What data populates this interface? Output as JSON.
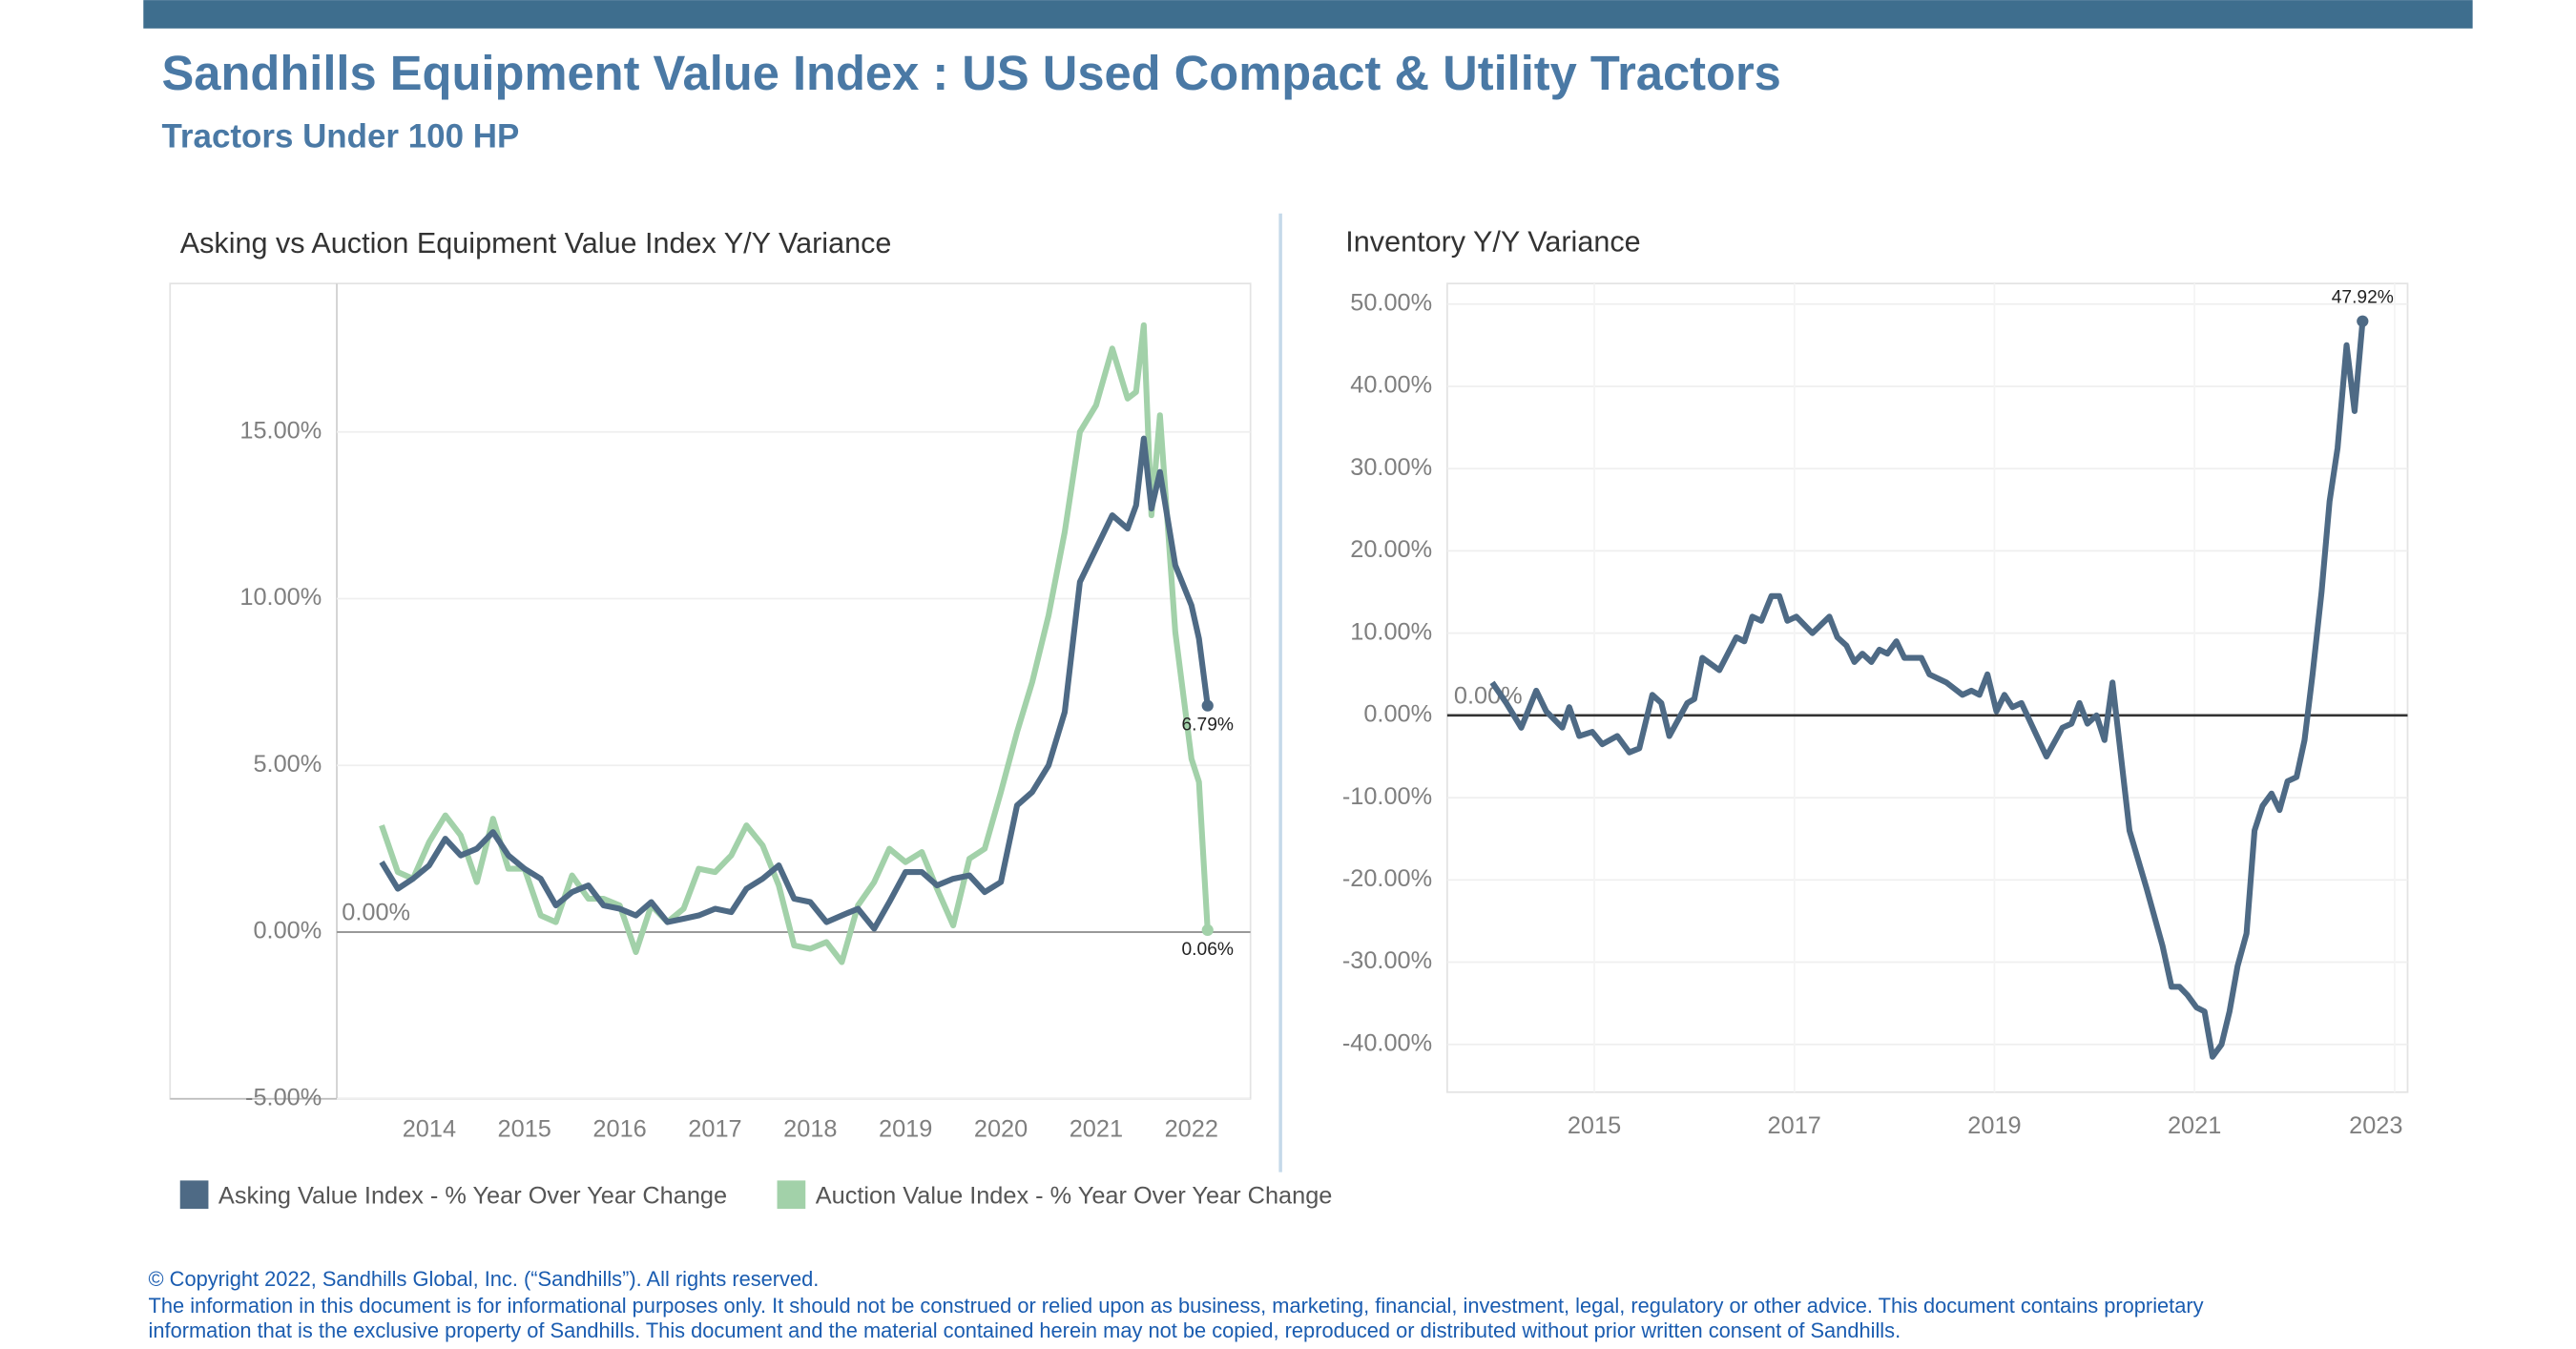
{
  "header": {
    "title": "Sandhills Equipment Value Index : US Used Compact & Utility Tractors",
    "subtitle": "Tractors Under 100 HP"
  },
  "footer": [
    "© Copyright 2022, Sandhills Global, Inc. (“Sandhills”). All rights reserved.",
    "The information in this document is for informational purposes only.  It should not be construed or relied upon as business, marketing, financial, investment, legal, regulatory or other advice. This document contains proprietary",
    "information that is the exclusive property of Sandhills. This document and the material contained herein may not be copied, reproduced or distributed without prior written consent of Sandhills."
  ],
  "chart_data": [
    {
      "type": "line",
      "title": "Asking vs Auction Equipment Value Index Y/Y Variance",
      "x": [
        2013.5,
        2013.67,
        2013.83,
        2014.0,
        2014.17,
        2014.33,
        2014.5,
        2014.67,
        2014.83,
        2015.0,
        2015.17,
        2015.33,
        2015.5,
        2015.67,
        2015.83,
        2016.0,
        2016.17,
        2016.33,
        2016.5,
        2016.67,
        2016.83,
        2017.0,
        2017.17,
        2017.33,
        2017.5,
        2017.67,
        2017.83,
        2018.0,
        2018.17,
        2018.33,
        2018.5,
        2018.67,
        2018.83,
        2019.0,
        2019.17,
        2019.33,
        2019.5,
        2019.67,
        2019.83,
        2020.0,
        2020.17,
        2020.33,
        2020.5,
        2020.67,
        2020.83,
        2021.0,
        2021.17,
        2021.33,
        2021.42,
        2021.5,
        2021.58,
        2021.67,
        2021.83,
        2022.0,
        2022.08,
        2022.17
      ],
      "series": [
        {
          "name": "Asking Value Index - % Year Over Year Change",
          "color": "#4e6a85",
          "values": [
            2.1,
            1.3,
            1.6,
            2.0,
            2.8,
            2.3,
            2.5,
            3.0,
            2.3,
            1.9,
            1.6,
            0.8,
            1.2,
            1.4,
            0.8,
            0.7,
            0.5,
            0.9,
            0.3,
            0.4,
            0.5,
            0.7,
            0.6,
            1.3,
            1.6,
            2.0,
            1.0,
            0.9,
            0.3,
            0.5,
            0.7,
            0.1,
            0.9,
            1.8,
            1.8,
            1.4,
            1.6,
            1.7,
            1.2,
            1.5,
            3.8,
            4.2,
            5.0,
            6.6,
            10.5,
            11.5,
            12.5,
            12.1,
            12.8,
            14.8,
            12.7,
            13.8,
            11.0,
            9.8,
            8.8,
            6.79
          ],
          "value_labels": [
            null,
            null,
            null,
            null,
            null,
            null,
            null,
            null,
            null,
            null,
            null,
            null,
            null,
            null,
            null,
            null,
            null,
            null,
            null,
            null,
            null,
            null,
            null,
            null,
            null,
            null,
            null,
            null,
            null,
            null,
            null,
            null,
            null,
            null,
            null,
            null,
            null,
            null,
            null,
            null,
            null,
            null,
            null,
            null,
            null,
            null,
            null,
            null,
            null,
            null,
            null,
            null,
            null,
            null,
            null,
            "6.79%"
          ]
        },
        {
          "name": "Auction Value Index - % Year Over Year Change",
          "color": "#a2d1a9",
          "values": [
            3.2,
            1.8,
            1.6,
            2.7,
            3.5,
            2.9,
            1.5,
            3.4,
            1.9,
            1.9,
            0.5,
            0.3,
            1.7,
            1.0,
            1.0,
            0.8,
            -0.6,
            0.8,
            0.3,
            0.7,
            1.9,
            1.8,
            2.3,
            3.2,
            2.6,
            1.4,
            -0.4,
            -0.5,
            -0.3,
            -0.9,
            0.8,
            1.5,
            2.5,
            2.1,
            2.4,
            1.3,
            0.2,
            2.2,
            2.5,
            4.2,
            6.0,
            7.5,
            9.5,
            12.0,
            15.0,
            15.8,
            17.5,
            16.0,
            16.2,
            18.2,
            12.5,
            15.5,
            9.0,
            5.2,
            4.5,
            0.06
          ],
          "value_labels": [
            null,
            null,
            null,
            null,
            null,
            null,
            null,
            null,
            null,
            null,
            null,
            null,
            null,
            null,
            null,
            null,
            null,
            null,
            null,
            null,
            null,
            null,
            null,
            null,
            null,
            null,
            null,
            null,
            null,
            null,
            null,
            null,
            null,
            null,
            null,
            null,
            null,
            null,
            null,
            null,
            null,
            null,
            null,
            null,
            null,
            null,
            null,
            null,
            null,
            null,
            null,
            null,
            null,
            null,
            null,
            "0.06%"
          ]
        }
      ],
      "xlim": [
        2013.03,
        2022.62
      ],
      "xticks": [
        2014,
        2015,
        2016,
        2017,
        2018,
        2019,
        2020,
        2021,
        2022
      ],
      "ylim": [
        -5,
        19.45
      ],
      "yticks": [
        {
          "value": -5,
          "label": "-5.00%"
        },
        {
          "value": 0,
          "label": "0.00%"
        },
        {
          "value": 5,
          "label": "5.00%"
        },
        {
          "value": 10,
          "label": "10.00%"
        },
        {
          "value": 15,
          "label": "15.00%"
        }
      ],
      "hline": {
        "value": 0,
        "label": "0.00%"
      },
      "grid": true,
      "legend": "bottom"
    },
    {
      "type": "line",
      "title": "Inventory Y/Y Variance",
      "x": [
        2013.98,
        2014.12,
        2014.27,
        2014.42,
        2014.52,
        2014.68,
        2014.75,
        2014.85,
        2014.98,
        2015.08,
        2015.23,
        2015.35,
        2015.45,
        2015.58,
        2015.67,
        2015.75,
        2015.93,
        2016.0,
        2016.08,
        2016.25,
        2016.42,
        2016.5,
        2016.58,
        2016.67,
        2016.77,
        2016.85,
        2016.93,
        2017.02,
        2017.18,
        2017.35,
        2017.43,
        2017.52,
        2017.6,
        2017.68,
        2017.77,
        2017.85,
        2017.93,
        2018.02,
        2018.1,
        2018.27,
        2018.35,
        2018.52,
        2018.68,
        2018.77,
        2018.85,
        2018.93,
        2019.02,
        2019.1,
        2019.18,
        2019.27,
        2019.52,
        2019.68,
        2019.77,
        2019.85,
        2019.93,
        2020.02,
        2020.1,
        2020.18,
        2020.35,
        2020.52,
        2020.68,
        2020.77,
        2020.85,
        2020.93,
        2021.02,
        2021.1,
        2021.18,
        2021.27,
        2021.35,
        2021.43,
        2021.52,
        2021.6,
        2021.68,
        2021.77,
        2021.85,
        2021.93,
        2022.02,
        2022.1,
        2022.18,
        2022.27,
        2022.35,
        2022.43,
        2022.52,
        2022.6,
        2022.68
      ],
      "series": [
        {
          "name": "Inventory",
          "color": "#4e6a85",
          "values": [
            4.0,
            1.5,
            -1.5,
            3.0,
            0.5,
            -1.5,
            1.0,
            -2.5,
            -2.0,
            -3.5,
            -2.5,
            -4.5,
            -4.0,
            2.5,
            1.5,
            -2.5,
            1.5,
            2.0,
            7.0,
            5.5,
            9.5,
            9.0,
            12.0,
            11.5,
            14.5,
            14.5,
            11.5,
            12.0,
            10.0,
            12.0,
            9.5,
            8.5,
            6.5,
            7.5,
            6.5,
            8.0,
            7.5,
            9.0,
            7.0,
            7.0,
            5.0,
            4.0,
            2.5,
            3.0,
            2.5,
            5.0,
            0.5,
            2.5,
            1.0,
            1.5,
            -5.0,
            -1.5,
            -1.0,
            1.5,
            -1.0,
            0.0,
            -3.0,
            4.0,
            -14.0,
            -21.0,
            -28.0,
            -33.0,
            -33.0,
            -34.0,
            -35.5,
            -36.0,
            -41.5,
            -40.0,
            -36.0,
            -30.5,
            -26.5,
            -14.0,
            -11.0,
            -9.5,
            -11.5,
            -8.0,
            -7.5,
            -3.0,
            5.0,
            15.0,
            26.0,
            32.5,
            45.0,
            37.0,
            47.92
          ],
          "value_labels": [
            null,
            null,
            null,
            null,
            null,
            null,
            null,
            null,
            null,
            null,
            null,
            null,
            null,
            null,
            null,
            null,
            null,
            null,
            null,
            null,
            null,
            null,
            null,
            null,
            null,
            null,
            null,
            null,
            null,
            null,
            null,
            null,
            null,
            null,
            null,
            null,
            null,
            null,
            null,
            null,
            null,
            null,
            null,
            null,
            null,
            null,
            null,
            null,
            null,
            null,
            null,
            null,
            null,
            null,
            null,
            null,
            null,
            null,
            null,
            null,
            null,
            null,
            null,
            null,
            null,
            null,
            null,
            null,
            null,
            null,
            null,
            null,
            null,
            null,
            null,
            null,
            null,
            null,
            null,
            null,
            null,
            null,
            null,
            null,
            "47.92%"
          ]
        }
      ],
      "xlim": [
        2013.53,
        2023.13
      ],
      "xticks": [
        2015,
        2017,
        2019,
        2021,
        2023
      ],
      "ylim": [
        -45.8,
        52.5
      ],
      "yticks": [
        {
          "value": -40,
          "label": "-40.00%"
        },
        {
          "value": -30,
          "label": "-30.00%"
        },
        {
          "value": -20,
          "label": "-20.00%"
        },
        {
          "value": -10,
          "label": "-10.00%"
        },
        {
          "value": 0,
          "label": "0.00%"
        },
        {
          "value": 10,
          "label": "10.00%"
        },
        {
          "value": 20,
          "label": "20.00%"
        },
        {
          "value": 30,
          "label": "30.00%"
        },
        {
          "value": 40,
          "label": "40.00%"
        },
        {
          "value": 50,
          "label": "50.00%"
        }
      ],
      "hline": {
        "value": 0,
        "label": "0.00%"
      },
      "grid": true
    }
  ]
}
